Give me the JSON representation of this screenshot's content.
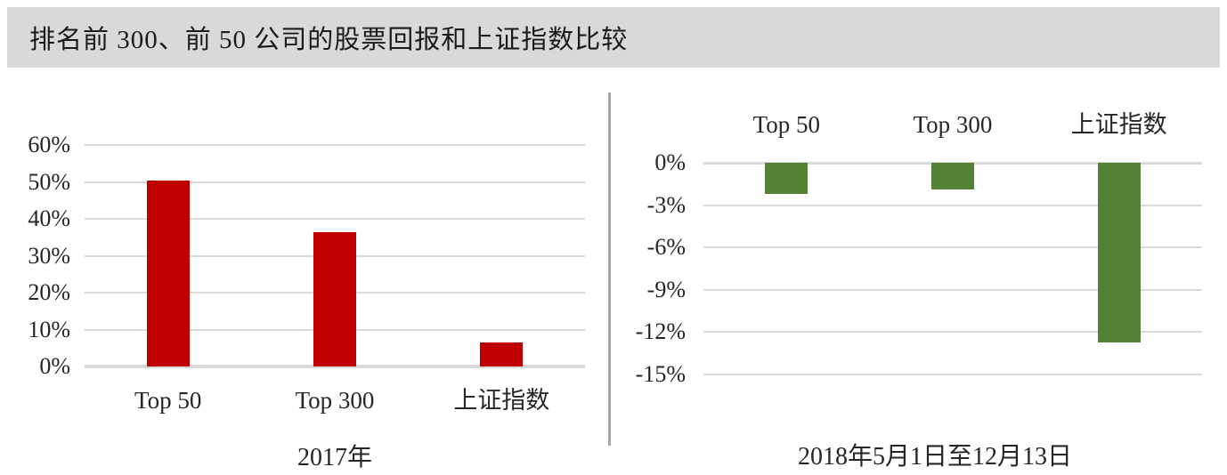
{
  "page_title": "排名前 300、前 50 公司的股票回报和上证指数比较",
  "colors": {
    "title_bar_bg": "#D9D9D9",
    "title_text": "#1A1A1A",
    "red_bar": "#C00000",
    "green_bar": "#538135",
    "gridline": "#D9D9D9",
    "divider": "#A6A6A6",
    "chart_text": "#262626"
  },
  "chart_data": [
    {
      "type": "bar",
      "title": "2017年",
      "categories": [
        "Top 50",
        "Top 300",
        "上证指数"
      ],
      "values": [
        50.3,
        36.4,
        6.6
      ],
      "unit": "%",
      "bar_color": "#C00000",
      "ylim": [
        0,
        60
      ],
      "ytick_values": [
        0,
        10,
        20,
        30,
        40,
        50,
        60
      ],
      "ytick_labels": [
        "0%",
        "10%",
        "20%",
        "30%",
        "40%",
        "50%",
        "60%"
      ],
      "grid": true,
      "legend": "none",
      "category_label_position": "below"
    },
    {
      "type": "bar",
      "title": "2018年5月1日至12月13日",
      "categories": [
        "Top 50",
        "Top 300",
        "上证指数"
      ],
      "values": [
        -2.2,
        -1.9,
        -12.7
      ],
      "unit": "%",
      "bar_color": "#538135",
      "ylim": [
        -15,
        0
      ],
      "ytick_values": [
        0,
        -3,
        -6,
        -9,
        -12,
        -15
      ],
      "ytick_labels": [
        "0%",
        "-3%",
        "-6%",
        "-9%",
        "-12%",
        "-15%"
      ],
      "grid": true,
      "legend": "none",
      "category_label_position": "above"
    }
  ]
}
